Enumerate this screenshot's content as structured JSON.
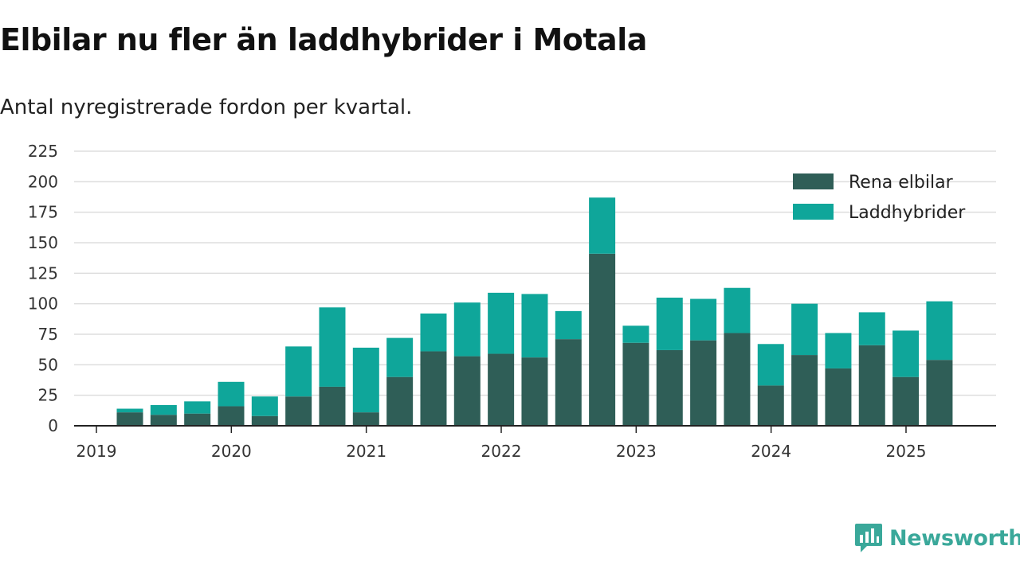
{
  "title": "Elbilar nu fler än laddhybrider i Motala",
  "subtitle": "Antal nyregistrerade fordon per kvartal.",
  "brand": {
    "name": "Newsworthy",
    "color": "#3aa89a",
    "icon": "bar-chart-speech-icon"
  },
  "chart_data": {
    "type": "bar",
    "stacked": true,
    "title": "Elbilar nu fler än laddhybrider i Motala",
    "subtitle": "Antal nyregistrerade fordon per kvartal.",
    "xlabel": "",
    "ylabel": "",
    "ylim": [
      0,
      225
    ],
    "yticks": [
      0,
      25,
      50,
      75,
      100,
      125,
      150,
      175,
      200,
      225
    ],
    "grid": true,
    "legend_position": "top-right",
    "x_year_labels": [
      "2019",
      "2020",
      "2021",
      "2022",
      "2023",
      "2024",
      "2025"
    ],
    "categories": [
      "2019 Q2",
      "2019 Q3",
      "2019 Q4",
      "2020 Q1",
      "2020 Q2",
      "2020 Q3",
      "2020 Q4",
      "2021 Q1",
      "2021 Q2",
      "2021 Q3",
      "2021 Q4",
      "2022 Q1",
      "2022 Q2",
      "2022 Q3",
      "2022 Q4",
      "2023 Q1",
      "2023 Q2",
      "2023 Q3",
      "2023 Q4",
      "2024 Q1",
      "2024 Q2",
      "2024 Q3",
      "2024 Q4",
      "2025 Q1",
      "2025 Q2"
    ],
    "series": [
      {
        "name": "Rena elbilar",
        "color": "#2f5e57",
        "values": [
          11,
          9,
          10,
          16,
          8,
          24,
          32,
          11,
          40,
          61,
          57,
          59,
          56,
          71,
          141,
          68,
          62,
          70,
          76,
          33,
          58,
          47,
          66,
          40,
          54
        ]
      },
      {
        "name": "Laddhybrider",
        "color": "#0fa69a",
        "values": [
          3,
          8,
          10,
          20,
          16,
          41,
          65,
          53,
          32,
          31,
          44,
          50,
          52,
          23,
          46,
          14,
          43,
          34,
          37,
          34,
          42,
          29,
          27,
          38,
          48
        ]
      }
    ]
  }
}
